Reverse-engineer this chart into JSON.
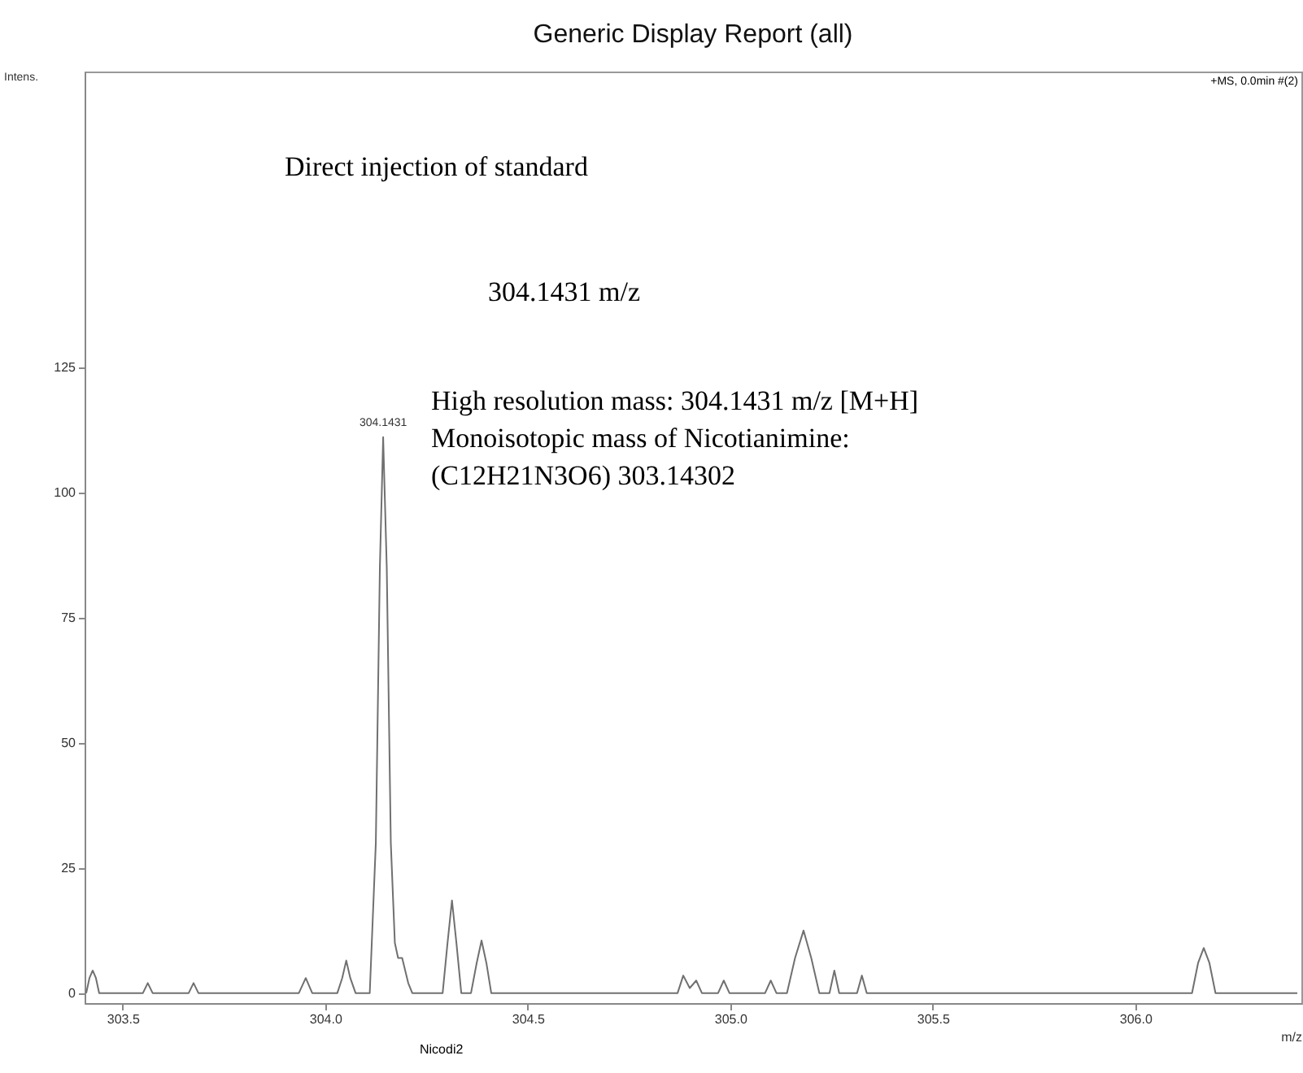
{
  "chart_data": {
    "type": "line",
    "title": "Generic Display Report (all)",
    "xlabel": "m/z",
    "ylabel": "Intens.",
    "xlim": [
      303.406,
      306.41
    ],
    "ylim": [
      -2,
      184
    ],
    "xticks": [
      303.5,
      {
        "value": 304,
        "label": "304.0"
      },
      304.5,
      {
        "value": 305,
        "label": "305.0"
      },
      305.5,
      {
        "value": 306,
        "label": "306.0"
      }
    ],
    "yticks": [
      0,
      25,
      50,
      75,
      100,
      125
    ],
    "series": [
      {
        "color": "#707070",
        "x": [
          303.41,
          303.418,
          303.426,
          303.434,
          303.442,
          303.55,
          303.562,
          303.574,
          303.663,
          303.675,
          303.687,
          303.935,
          303.952,
          303.968,
          304.03,
          304.042,
          304.052,
          304.062,
          304.075,
          304.11,
          304.125,
          304.135,
          304.1431,
          304.152,
          304.162,
          304.172,
          304.18,
          304.19,
          304.205,
          304.215,
          304.29,
          304.302,
          304.313,
          304.324,
          304.336,
          304.36,
          304.374,
          304.386,
          304.398,
          304.41,
          304.87,
          304.884,
          304.9,
          304.916,
          304.93,
          304.97,
          304.984,
          304.998,
          305.086,
          305.1,
          305.114,
          305.14,
          305.16,
          305.181,
          305.2,
          305.22,
          305.245,
          305.257,
          305.269,
          305.313,
          305.325,
          305.337,
          306.14,
          306.155,
          306.169,
          306.183,
          306.198,
          306.4
        ],
        "values": [
          0,
          3,
          4.5,
          3,
          0,
          0,
          2,
          0,
          0,
          2,
          0,
          0,
          3,
          0,
          0,
          3,
          6.5,
          3,
          0,
          0,
          30,
          85,
          111,
          85,
          30,
          10,
          7,
          7,
          2,
          0,
          0,
          10,
          18.5,
          10,
          0,
          0,
          6,
          10.5,
          6,
          0,
          0,
          3.5,
          1,
          2.5,
          0,
          0,
          2.5,
          0,
          0,
          2.5,
          0,
          0,
          7,
          12.5,
          7,
          0,
          0,
          4.5,
          0,
          0,
          3.5,
          0,
          0,
          6,
          9,
          6,
          0,
          0
        ]
      }
    ],
    "annotations": [
      {
        "text": "304.1431",
        "x": 304.1431,
        "y": 111
      },
      "+MS, 0.0min #(2)",
      "Direct injection of standard",
      "304.1431 m/z",
      "High resolution mass: 304.1431 m/z [M+H]",
      "Monoisotopic mass of Nicotianimine:",
      "(C12H21N3O6) 303.14302",
      "Nicodi2"
    ]
  }
}
